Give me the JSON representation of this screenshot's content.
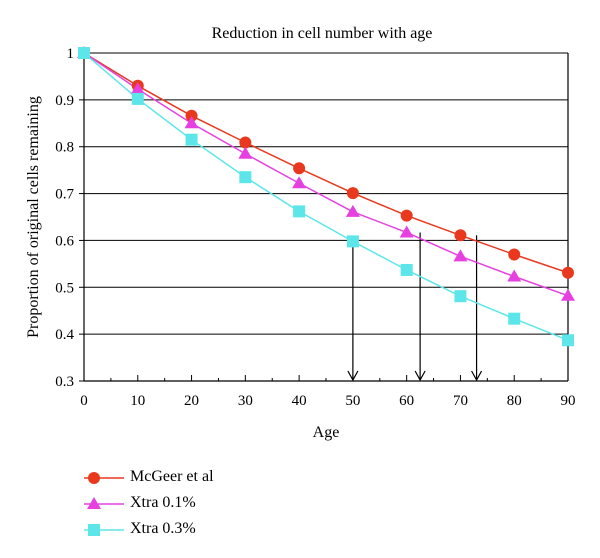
{
  "chart_data": {
    "type": "line",
    "title": "Reduction in cell number with age",
    "xlabel": "Age",
    "ylabel": "Proportion of original cells remaining",
    "xlim": [
      0,
      90
    ],
    "ylim": [
      0.3,
      1
    ],
    "xticks": [
      0,
      10,
      20,
      30,
      40,
      50,
      60,
      70,
      80,
      90
    ],
    "yticks": [
      0.3,
      0.4,
      0.5,
      0.6,
      0.7,
      0.8,
      0.9,
      1
    ],
    "ytick_labels": [
      "0.3",
      "0.4",
      "0.5",
      "0.6",
      "0.7",
      "0.8",
      "0.9",
      "1"
    ],
    "grid": "horizontal",
    "legend_position": "bottom-left",
    "x": [
      0,
      10,
      20,
      30,
      40,
      50,
      60,
      70,
      80,
      90
    ],
    "series": [
      {
        "name": "McGeer et al",
        "color": "#e8391e",
        "marker": "circle",
        "values": [
          1.0,
          0.93,
          0.866,
          0.809,
          0.754,
          0.701,
          0.653,
          0.611,
          0.57,
          0.531
        ]
      },
      {
        "name": "Xtra 0.1%",
        "color": "#e641e0",
        "marker": "triangle",
        "values": [
          1.0,
          0.923,
          0.85,
          0.785,
          0.722,
          0.661,
          0.617,
          0.566,
          0.523,
          0.482
        ]
      },
      {
        "name": "Xtra 0.3%",
        "color": "#5ce6ea",
        "marker": "square",
        "values": [
          1.0,
          0.902,
          0.815,
          0.735,
          0.662,
          0.598,
          0.537,
          0.481,
          0.433,
          0.387
        ]
      }
    ],
    "annotations": [
      {
        "type": "arrow",
        "x": 50,
        "y_from": 0.598,
        "y_to": 0.3
      },
      {
        "type": "arrow",
        "x": 62.5,
        "y_from": 0.617,
        "y_to": 0.3
      },
      {
        "type": "arrow",
        "x": 73,
        "y_from": 0.611,
        "y_to": 0.3
      }
    ]
  }
}
